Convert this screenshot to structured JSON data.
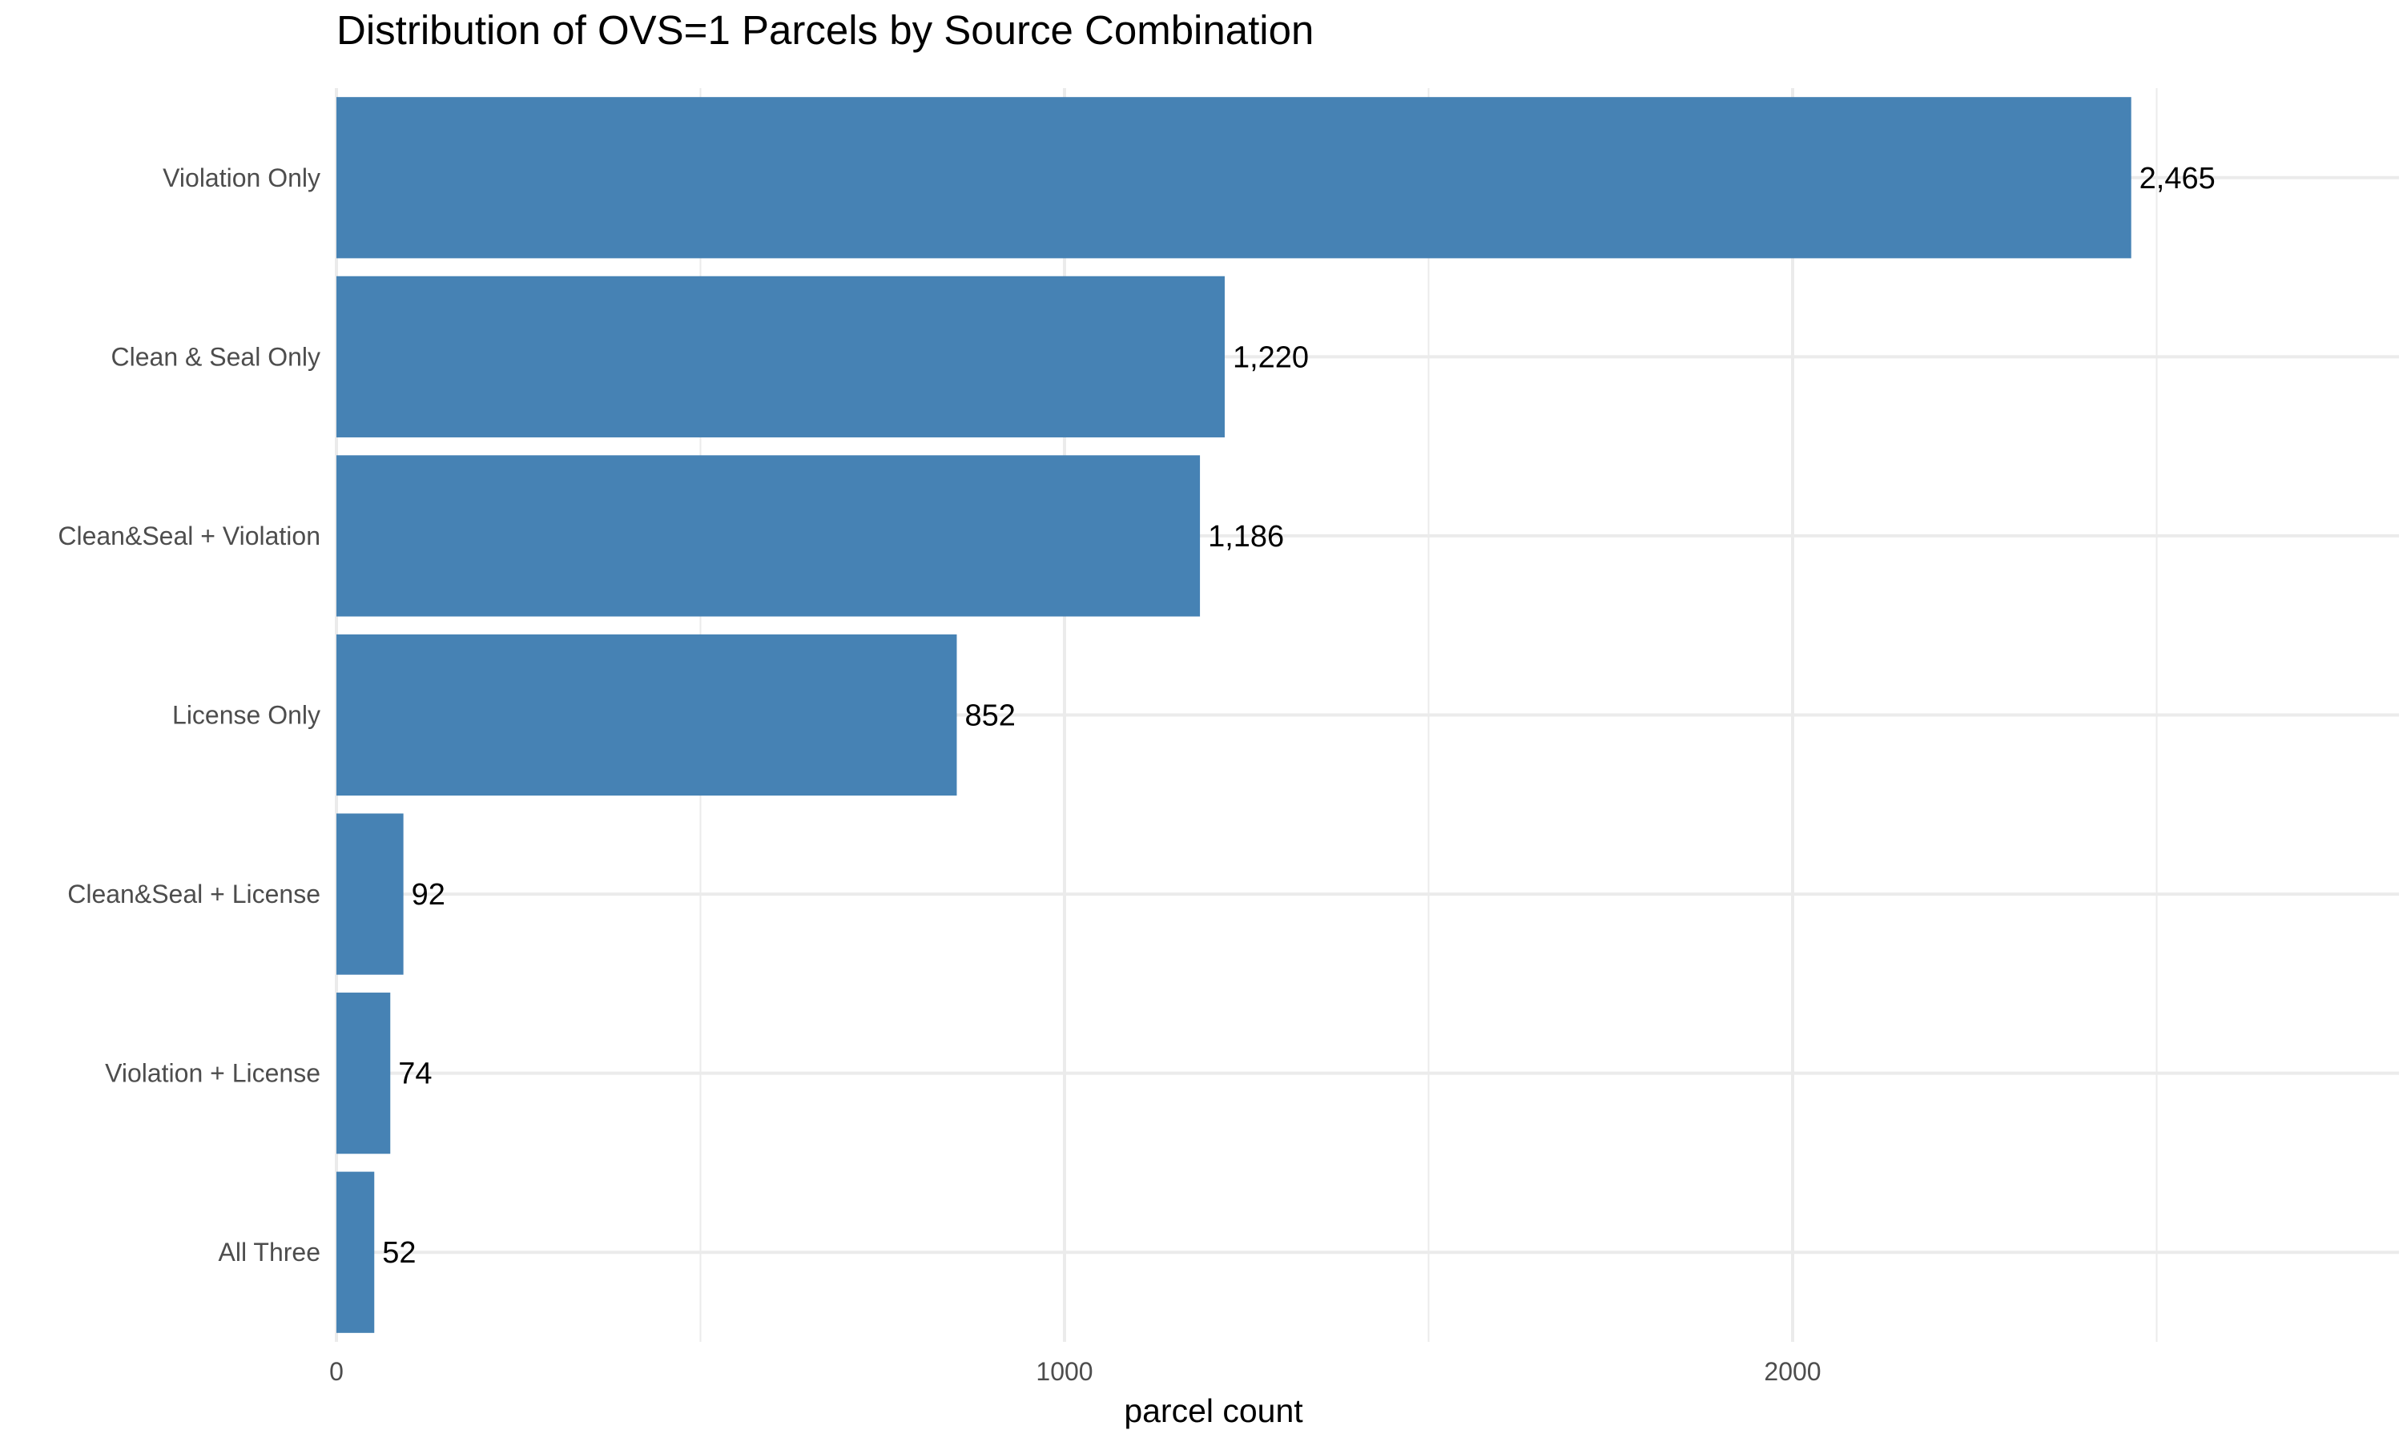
{
  "chart_data": {
    "type": "bar",
    "orientation": "horizontal",
    "title": "Distribution of OVS=1 Parcels by Source Combination",
    "xlabel": "parcel count",
    "ylabel": "",
    "categories": [
      "Violation Only",
      "Clean & Seal Only",
      "Clean&Seal + Violation",
      "License Only",
      "Clean&Seal + License",
      "Violation + License",
      "All Three"
    ],
    "values": [
      2465,
      1220,
      1186,
      852,
      92,
      74,
      52
    ],
    "value_labels": [
      "2,465",
      "1,220",
      "1,186",
      "852",
      "92",
      "74",
      "52"
    ],
    "xlim": [
      0,
      2835
    ],
    "xticks": [
      0,
      1000,
      2000
    ],
    "xtick_labels": [
      "0",
      "1000",
      "2000"
    ],
    "grid": true,
    "legend": "none",
    "bar_color": "#4682b4",
    "grid_color": "#ebebeb"
  }
}
